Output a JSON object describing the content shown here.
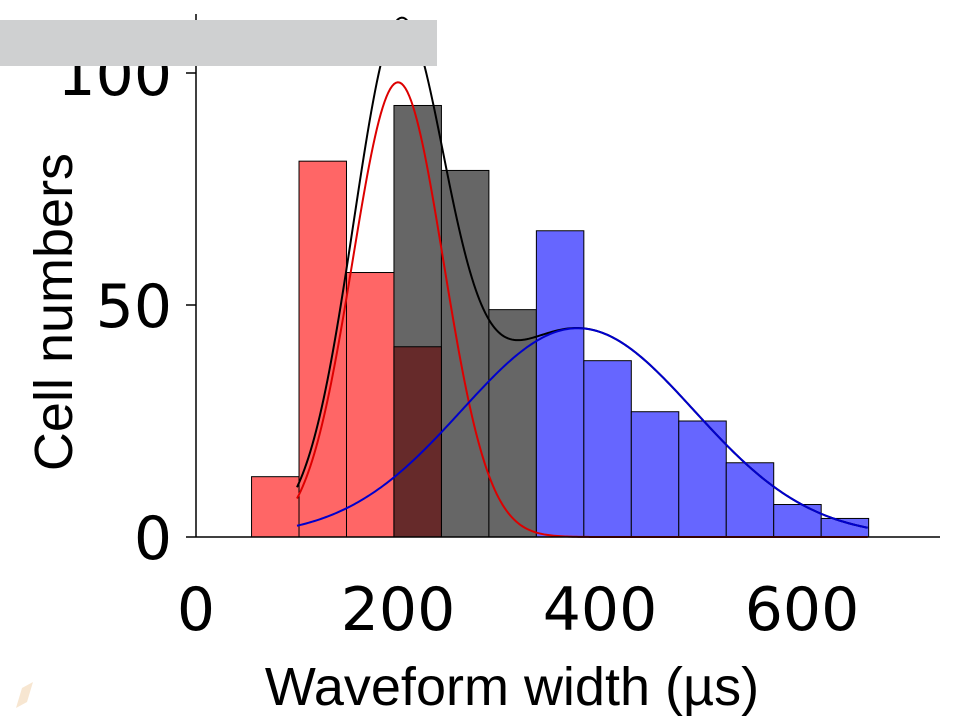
{
  "chart_data": {
    "type": "bar",
    "xlabel": "Waveform width (µs)",
    "ylabel": "Cell numbers",
    "xlim": [
      -5,
      730
    ],
    "ylim": [
      0,
      114
    ],
    "x_ticks": [
      0,
      200,
      400,
      600
    ],
    "y_ticks": [
      0,
      50,
      100
    ],
    "bin_width": 47,
    "colors": {
      "red": "#ff6666",
      "gray": "#666666",
      "overlap": "#662a2a",
      "blue": "#6666ff",
      "total_fit": "#000000",
      "red_fit": "#dd0000",
      "blue_fit": "#0000cc",
      "axis": "#000000"
    },
    "series": [
      {
        "color": "red",
        "bins": [
          {
            "x0": 55,
            "x1": 102,
            "value": 13
          },
          {
            "x0": 102,
            "x1": 149,
            "value": 81
          },
          {
            "x0": 149,
            "x1": 196,
            "value": 57
          },
          {
            "x0": 196,
            "x1": 243,
            "value": 41
          }
        ]
      },
      {
        "color": "gray",
        "bins": [
          {
            "x0": 196,
            "x1": 243,
            "value": 93
          },
          {
            "x0": 243,
            "x1": 290,
            "value": 79
          },
          {
            "x0": 290,
            "x1": 337,
            "value": 49
          }
        ]
      },
      {
        "color": "blue",
        "bins": [
          {
            "x0": 337,
            "x1": 384,
            "value": 66
          },
          {
            "x0": 384,
            "x1": 431,
            "value": 38
          },
          {
            "x0": 431,
            "x1": 478,
            "value": 27
          },
          {
            "x0": 478,
            "x1": 525,
            "value": 25
          },
          {
            "x0": 525,
            "x1": 572,
            "value": 16
          },
          {
            "x0": 572,
            "x1": 619,
            "value": 7
          },
          {
            "x0": 619,
            "x1": 666,
            "value": 4
          }
        ]
      }
    ],
    "overlap_bins": [
      {
        "x0": 196,
        "x1": 243,
        "value": 41
      }
    ],
    "fits": [
      {
        "color": "red_fit",
        "type": "gaussian",
        "amplitude": 98,
        "mean": 200,
        "sigma": 45,
        "x_range": [
          100,
          665
        ]
      },
      {
        "color": "blue_fit",
        "type": "gaussian",
        "amplitude": 45,
        "mean": 378,
        "sigma": 115,
        "x_range": [
          100,
          665
        ]
      },
      {
        "color": "total_fit",
        "type": "sum",
        "x_range": [
          100,
          665
        ]
      }
    ]
  }
}
